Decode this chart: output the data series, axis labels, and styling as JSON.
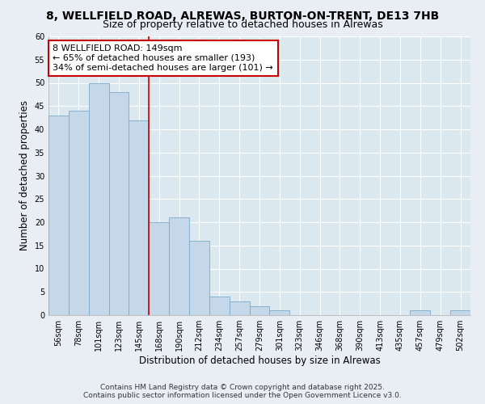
{
  "title": "8, WELLFIELD ROAD, ALREWAS, BURTON-ON-TRENT, DE13 7HB",
  "subtitle": "Size of property relative to detached houses in Alrewas",
  "xlabel": "Distribution of detached houses by size in Alrewas",
  "ylabel": "Number of detached properties",
  "bar_labels": [
    "56sqm",
    "78sqm",
    "101sqm",
    "123sqm",
    "145sqm",
    "168sqm",
    "190sqm",
    "212sqm",
    "234sqm",
    "257sqm",
    "279sqm",
    "301sqm",
    "323sqm",
    "346sqm",
    "368sqm",
    "390sqm",
    "413sqm",
    "435sqm",
    "457sqm",
    "479sqm",
    "502sqm"
  ],
  "bar_values": [
    43,
    44,
    50,
    48,
    42,
    20,
    21,
    16,
    4,
    3,
    2,
    1,
    0,
    0,
    0,
    0,
    0,
    0,
    1,
    0,
    1
  ],
  "bar_color": "#c5d8ea",
  "bar_edge_color": "#7aaac8",
  "vline_x": 4,
  "vline_color": "#cc0000",
  "annotation_line1": "8 WELLFIELD ROAD: 149sqm",
  "annotation_line2": "← 65% of detached houses are smaller (193)",
  "annotation_line3": "34% of semi-detached houses are larger (101) →",
  "annotation_box_color": "#ffffff",
  "annotation_box_edge": "#cc0000",
  "ylim": [
    0,
    60
  ],
  "yticks": [
    0,
    5,
    10,
    15,
    20,
    25,
    30,
    35,
    40,
    45,
    50,
    55,
    60
  ],
  "background_color": "#e8eef4",
  "plot_bg_color": "#dce8f0",
  "grid_color": "#ffffff",
  "footer_line1": "Contains HM Land Registry data © Crown copyright and database right 2025.",
  "footer_line2": "Contains public sector information licensed under the Open Government Licence v3.0.",
  "title_fontsize": 10,
  "subtitle_fontsize": 9,
  "axis_label_fontsize": 8.5,
  "tick_fontsize": 7,
  "annotation_fontsize": 8,
  "footer_fontsize": 6.5
}
